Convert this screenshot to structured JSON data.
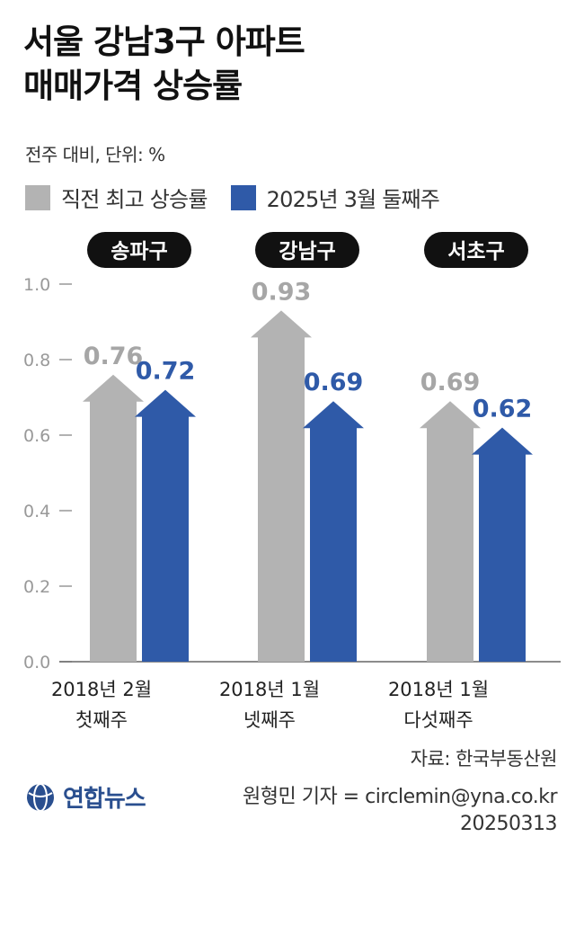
{
  "header": {
    "title_line1": "서울 강남3구 아파트",
    "title_line2": "매매가격 상승률",
    "subtitle": "전주 대비, 단위: %"
  },
  "legend": [
    {
      "label": "직전 최고 상승률",
      "color": "#b3b3b3"
    },
    {
      "label": "2025년 3월 둘째주",
      "color": "#2f5aa8"
    }
  ],
  "chart_data": {
    "type": "bar",
    "title": "서울 강남3구 아파트 매매가격 상승률",
    "unit": "전주 대비, 단위: %",
    "ylim": [
      0,
      1.0
    ],
    "yticks": [
      "0.0",
      "0.2",
      "0.4",
      "0.6",
      "0.8",
      "1.0"
    ],
    "groups": [
      {
        "district": "송파구",
        "prev_peak_value": 0.76,
        "prev_peak_label": "0.76",
        "period_line1": "2018년 2월",
        "period_line2": "첫째주",
        "current_value": 0.72,
        "current_label": "0.72"
      },
      {
        "district": "강남구",
        "prev_peak_value": 0.93,
        "prev_peak_label": "0.93",
        "period_line1": "2018년 1월",
        "period_line2": "넷째주",
        "current_value": 0.69,
        "current_label": "0.69"
      },
      {
        "district": "서초구",
        "prev_peak_value": 0.69,
        "prev_peak_label": "0.69",
        "period_line1": "2018년 1월",
        "period_line2": "다섯째주",
        "current_value": 0.62,
        "current_label": "0.62"
      }
    ],
    "series": [
      {
        "name": "직전 최고 상승률",
        "values": [
          0.76,
          0.93,
          0.69
        ]
      },
      {
        "name": "2025년 3월 둘째주",
        "values": [
          0.72,
          0.69,
          0.62
        ]
      }
    ],
    "colors": {
      "prev": "#b3b3b3",
      "prev_label": "#a6a6a6",
      "current": "#2f5aa8",
      "current_label": "#2f5aa8",
      "axis": "#999999",
      "pill": "#111111"
    }
  },
  "footer": {
    "source": "자료: 한국부동산원",
    "logo_text": "연합뉴스",
    "credit_line1": "원형민 기자 = circlemin@yna.co.kr",
    "credit_line2": "20250313"
  }
}
